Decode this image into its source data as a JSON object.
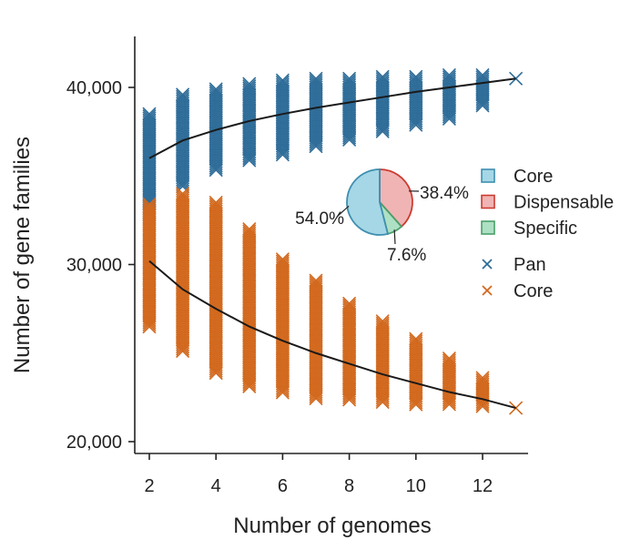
{
  "chart_data": {
    "type": "scatter",
    "xlabel": "Number of genomes",
    "ylabel": "Number of gene families",
    "xlim": [
      1.6,
      13.4
    ],
    "ylim": [
      19500,
      43500
    ],
    "xticks": [
      2,
      4,
      6,
      8,
      10,
      12
    ],
    "xtick_labels": [
      "2",
      "4",
      "6",
      "8",
      "10",
      "12"
    ],
    "yticks": [
      20000,
      30000,
      40000
    ],
    "ytick_labels": [
      "20,000",
      "30,000",
      "40,000"
    ],
    "series": [
      {
        "name": "Pan",
        "marker": "x",
        "color": "#2f6d99",
        "ranges": [
          {
            "x": 2,
            "min": 32800,
            "max": 38500
          },
          {
            "x": 3,
            "min": 34300,
            "max": 39600
          },
          {
            "x": 4,
            "min": 35300,
            "max": 39900
          },
          {
            "x": 5,
            "min": 35800,
            "max": 40200
          },
          {
            "x": 6,
            "min": 36200,
            "max": 40400
          },
          {
            "x": 7,
            "min": 36600,
            "max": 40500
          },
          {
            "x": 8,
            "min": 37000,
            "max": 40500
          },
          {
            "x": 9,
            "min": 37400,
            "max": 40600
          },
          {
            "x": 10,
            "min": 37800,
            "max": 40600
          },
          {
            "x": 11,
            "min": 38200,
            "max": 40700
          },
          {
            "x": 12,
            "min": 38900,
            "max": 40700
          },
          {
            "x": 13,
            "min": 40500,
            "max": 40500
          }
        ],
        "fit": {
          "x": [
            2,
            3,
            4,
            5,
            6,
            7,
            8,
            9,
            10,
            11,
            12,
            13
          ],
          "y": [
            36000,
            37000,
            37600,
            38100,
            38500,
            38850,
            39150,
            39450,
            39750,
            40000,
            40250,
            40500
          ]
        }
      },
      {
        "name": "Core",
        "marker": "x",
        "color": "#d2691e",
        "ranges": [
          {
            "x": 2,
            "min": 26400,
            "max": 33400
          },
          {
            "x": 3,
            "min": 25000,
            "max": 34000
          },
          {
            "x": 4,
            "min": 23800,
            "max": 33500
          },
          {
            "x": 5,
            "min": 23000,
            "max": 32000
          },
          {
            "x": 6,
            "min": 22700,
            "max": 30300
          },
          {
            "x": 7,
            "min": 22400,
            "max": 29100
          },
          {
            "x": 8,
            "min": 22300,
            "max": 27800
          },
          {
            "x": 9,
            "min": 22200,
            "max": 26800
          },
          {
            "x": 10,
            "min": 22100,
            "max": 25800
          },
          {
            "x": 11,
            "min": 22000,
            "max": 24700
          },
          {
            "x": 12,
            "min": 21900,
            "max": 23600
          },
          {
            "x": 13,
            "min": 21900,
            "max": 21900
          }
        ],
        "fit": {
          "x": [
            2,
            3,
            4,
            5,
            6,
            7,
            8,
            9,
            10,
            11,
            12,
            13
          ],
          "y": [
            30200,
            28600,
            27500,
            26500,
            25700,
            25000,
            24400,
            23800,
            23300,
            22800,
            22400,
            21900
          ]
        }
      }
    ],
    "inset_pie": {
      "slices": [
        {
          "label": "Core",
          "value": 54.0,
          "text": "54.0%",
          "color": "#a6d7e6"
        },
        {
          "label": "Dispensable",
          "value": 38.4,
          "text": "38.4%",
          "color": "#f0b4b4"
        },
        {
          "label": "Specific",
          "value": 7.6,
          "text": "7.6%",
          "color": "#aee0c4"
        }
      ],
      "edge_colors": {
        "Core": "#3e8fb0",
        "Dispensable": "#cc3b30",
        "Specific": "#4aa06a"
      }
    },
    "legend": [
      {
        "label": "Core",
        "kind": "square",
        "fill": "#a6d7e6",
        "stroke": "#3e8fb0"
      },
      {
        "label": "Dispensable",
        "kind": "square",
        "fill": "#f0b4b4",
        "stroke": "#cc3b30"
      },
      {
        "label": "Specific",
        "kind": "square",
        "fill": "#aee0c4",
        "stroke": "#4aa06a"
      },
      {
        "label": "Pan",
        "kind": "x",
        "stroke": "#2f6d99"
      },
      {
        "label": "Core",
        "kind": "x",
        "stroke": "#d2691e"
      }
    ]
  }
}
